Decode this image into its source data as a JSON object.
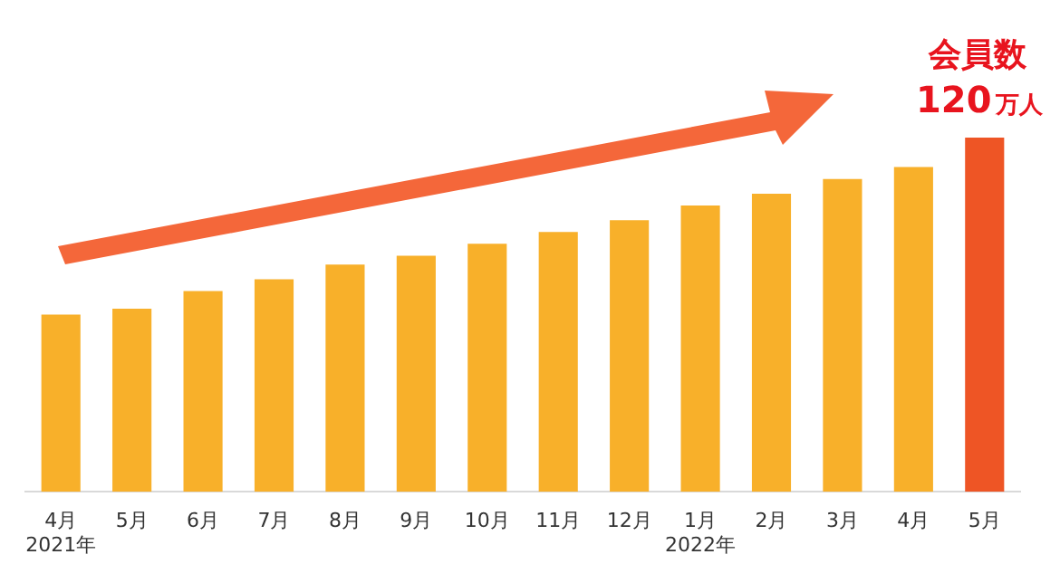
{
  "chart_data": {
    "type": "bar",
    "ylim": [
      0,
      120
    ],
    "tick_labels": "x",
    "categories": [
      "4月\n2021年",
      "5月",
      "6月",
      "7月",
      "8月",
      "9月",
      "10月",
      "11月",
      "12月",
      "1月\n2022年",
      "2月",
      "3月",
      "4月",
      "5月"
    ],
    "values": [
      60,
      62,
      68,
      72,
      77,
      80,
      84,
      88,
      92,
      97,
      101,
      106,
      110,
      120
    ],
    "colors": [
      "#f8b02a",
      "#f8b02a",
      "#f8b02a",
      "#f8b02a",
      "#f8b02a",
      "#f8b02a",
      "#f8b02a",
      "#f8b02a",
      "#f8b02a",
      "#f8b02a",
      "#f8b02a",
      "#f8b02a",
      "#f8b02a",
      "#ee5525"
    ],
    "value_labels": [
      null,
      null,
      null,
      null,
      null,
      null,
      null,
      null,
      null,
      null,
      null,
      null,
      null,
      "120万人"
    ],
    "annotations": [
      "会員数"
    ],
    "grid": false,
    "legend": false
  }
}
